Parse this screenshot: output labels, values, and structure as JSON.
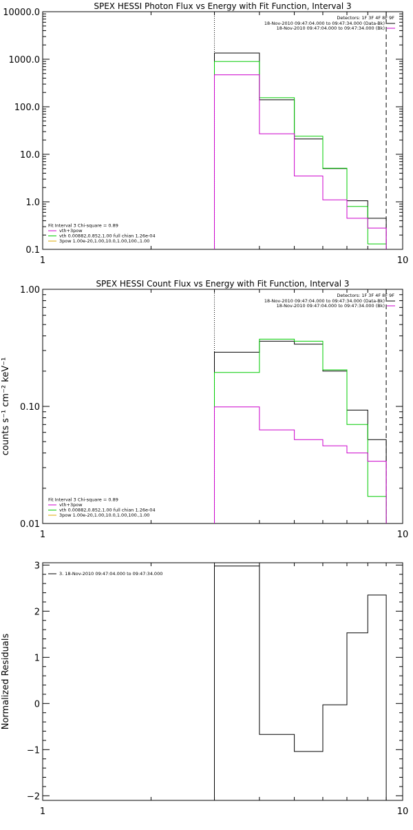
{
  "charts": [
    {
      "id": "photon",
      "type": "line",
      "step": true,
      "title": "SPEX HESSI Photon Flux vs Energy with Fit Function, Interval 3",
      "xlabel": "",
      "ylabel": "",
      "xscale": "log",
      "yscale": "log",
      "xlim": [
        1,
        10
      ],
      "ylim": [
        0.1,
        10000
      ],
      "xticks": [
        {
          "v": 1,
          "label": "1"
        },
        {
          "v": 10,
          "label": "10"
        }
      ],
      "yticks": [
        {
          "v": 0.1,
          "label": "0.1"
        },
        {
          "v": 1,
          "label": "1.0"
        },
        {
          "v": 10,
          "label": "10.0"
        },
        {
          "v": 100,
          "label": "100.0"
        },
        {
          "v": 1000,
          "label": "1000.0"
        },
        {
          "v": 10000,
          "label": "10000.0"
        }
      ],
      "vlines": [
        {
          "x": 3.0,
          "style": "dotted"
        },
        {
          "x": 9.0,
          "style": "dashed"
        }
      ],
      "edges": [
        3.0,
        4.0,
        5.0,
        6.0,
        7.0,
        8.0,
        9.0
      ],
      "series": [
        {
          "name": "",
          "color": "#000000",
          "values": [
            1350,
            140,
            21,
            5.0,
            1.05,
            0.45
          ]
        },
        {
          "name": "",
          "color": "#00cc00",
          "values": [
            900,
            155,
            24,
            5.1,
            0.8,
            0.13
          ]
        },
        {
          "name": "",
          "color": "#cc00cc",
          "values": [
            470,
            27,
            3.5,
            1.1,
            0.45,
            0.28
          ]
        }
      ],
      "legend_right": {
        "header": "Detectors: 1F 3F 4F 8F 9F",
        "items": [
          {
            "text": "18-Nov-2010 09:47:04.000 to 09:47:34.000 (Data-Bk)",
            "color": "#000000"
          },
          {
            "text": "18-Nov-2010 09:47:04.000 to 09:47:34.000 (Bk)",
            "color": "#cc00cc"
          }
        ]
      },
      "legend_left": {
        "header": "Fit Interval 3   Chi-square = 0.89",
        "items": [
          {
            "text": "vth+3pow",
            "color": "#cc00cc"
          },
          {
            "text": "vth 0.00882,0.852,1.00   full chian 1.26e-04",
            "color": "#00cc00"
          },
          {
            "text": "3pow 1.00e-20,1.00,10.0,1.00,100.,1.00",
            "color": "#ddaa00"
          }
        ]
      }
    },
    {
      "id": "count",
      "type": "line",
      "step": true,
      "title": "SPEX HESSI Count Flux vs Energy with Fit Function, Interval 3",
      "xlabel": "",
      "ylabel": "counts s⁻¹ cm⁻² keV⁻¹",
      "xscale": "log",
      "yscale": "log",
      "xlim": [
        1,
        10
      ],
      "ylim": [
        0.01,
        1.0
      ],
      "xticks": [
        {
          "v": 1,
          "label": "1"
        },
        {
          "v": 10,
          "label": "10"
        }
      ],
      "yticks": [
        {
          "v": 0.01,
          "label": "0.01"
        },
        {
          "v": 0.1,
          "label": "0.10"
        },
        {
          "v": 1,
          "label": "1.00"
        }
      ],
      "vlines": [
        {
          "x": 3.0,
          "style": "dotted"
        },
        {
          "x": 9.0,
          "style": "dashed"
        }
      ],
      "edges": [
        3.0,
        4.0,
        5.0,
        6.0,
        7.0,
        8.0,
        9.0
      ],
      "series": [
        {
          "name": "",
          "color": "#000000",
          "values": [
            0.29,
            0.36,
            0.34,
            0.2,
            0.093,
            0.052
          ]
        },
        {
          "name": "",
          "color": "#00cc00",
          "values": [
            0.195,
            0.375,
            0.36,
            0.205,
            0.07,
            0.017
          ]
        },
        {
          "name": "",
          "color": "#cc00cc",
          "values": [
            0.099,
            0.063,
            0.052,
            0.046,
            0.04,
            0.034
          ]
        }
      ],
      "legend_right": {
        "header": "Detectors: 1F 3F 4F 8F 9F",
        "items": [
          {
            "text": "18-Nov-2010 09:47:04.000 to 09:47:34.000 (Data-Bk)",
            "color": "#000000"
          },
          {
            "text": "18-Nov-2010 09:47:04.000 to 09:47:34.000 (Bk)",
            "color": "#cc00cc"
          }
        ]
      },
      "legend_left": {
        "header": "Fit Interval 3   Chi-square = 0.89",
        "items": [
          {
            "text": "vth+3pow",
            "color": "#cc00cc"
          },
          {
            "text": "vth 0.00882,0.852,1.00   full chian 1.26e-04",
            "color": "#00cc00"
          },
          {
            "text": "3pow 1.00e-20,1.00,10.0,1.00,100.,1.00",
            "color": "#ddaa00"
          }
        ]
      }
    },
    {
      "id": "residuals",
      "type": "line",
      "step": true,
      "title": "",
      "xlabel": "",
      "ylabel": "Normalized Residuals",
      "xscale": "log",
      "yscale": "linear",
      "xlim": [
        1,
        10
      ],
      "ylim": [
        -2.1,
        3.05
      ],
      "xticks": [
        {
          "v": 1,
          "label": "1"
        },
        {
          "v": 10,
          "label": "10"
        }
      ],
      "yticks": [
        {
          "v": -2,
          "label": "−2"
        },
        {
          "v": -1,
          "label": "−1"
        },
        {
          "v": 0,
          "label": "0"
        },
        {
          "v": 1,
          "label": "1"
        },
        {
          "v": 2,
          "label": "2"
        },
        {
          "v": 3,
          "label": "3"
        }
      ],
      "vlines": [],
      "edges": [
        3.0,
        4.0,
        5.0,
        6.0,
        7.0,
        8.0,
        9.0
      ],
      "series": [
        {
          "name": "",
          "color": "#000000",
          "values": [
            2.98,
            -0.67,
            -1.04,
            -0.03,
            1.53,
            2.35
          ]
        }
      ],
      "legend_right": null,
      "legend_left": {
        "header": "",
        "items": [
          {
            "text": "3. 18-Nov-2010 09:47:04.000 to 09:47:34.000",
            "color": "#000000"
          }
        ]
      }
    }
  ]
}
